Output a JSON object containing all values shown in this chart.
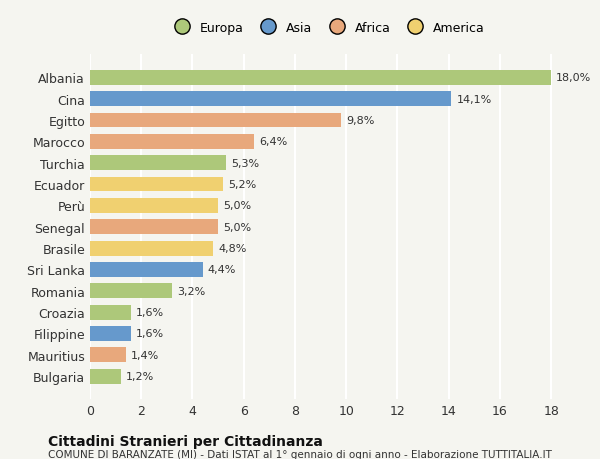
{
  "countries": [
    "Albania",
    "Cina",
    "Egitto",
    "Marocco",
    "Turchia",
    "Ecuador",
    "Perù",
    "Senegal",
    "Brasile",
    "Sri Lanka",
    "Romania",
    "Croazia",
    "Filippine",
    "Mauritius",
    "Bulgaria"
  ],
  "values": [
    18.0,
    14.1,
    9.8,
    6.4,
    5.3,
    5.2,
    5.0,
    5.0,
    4.8,
    4.4,
    3.2,
    1.6,
    1.6,
    1.4,
    1.2
  ],
  "labels": [
    "18,0%",
    "14,1%",
    "9,8%",
    "6,4%",
    "5,3%",
    "5,2%",
    "5,0%",
    "5,0%",
    "4,8%",
    "4,4%",
    "3,2%",
    "1,6%",
    "1,6%",
    "1,4%",
    "1,2%"
  ],
  "categories": [
    "Europa",
    "Asia",
    "Africa",
    "Africa",
    "Europa",
    "America",
    "America",
    "Africa",
    "America",
    "Asia",
    "Europa",
    "Europa",
    "Asia",
    "Africa",
    "Europa"
  ],
  "colors": {
    "Europa": "#adc87a",
    "Asia": "#6699cc",
    "Africa": "#e8a87c",
    "America": "#f0d070"
  },
  "legend_order": [
    "Europa",
    "Asia",
    "Africa",
    "America"
  ],
  "xlim": [
    0,
    18
  ],
  "xticks": [
    0,
    2,
    4,
    6,
    8,
    10,
    12,
    14,
    16,
    18
  ],
  "title": "Cittadini Stranieri per Cittadinanza",
  "subtitle": "COMUNE DI BARANZATE (MI) - Dati ISTAT al 1° gennaio di ogni anno - Elaborazione TUTTITALIA.IT",
  "background_color": "#f5f5f0",
  "grid_color": "#ffffff",
  "bar_height": 0.7
}
